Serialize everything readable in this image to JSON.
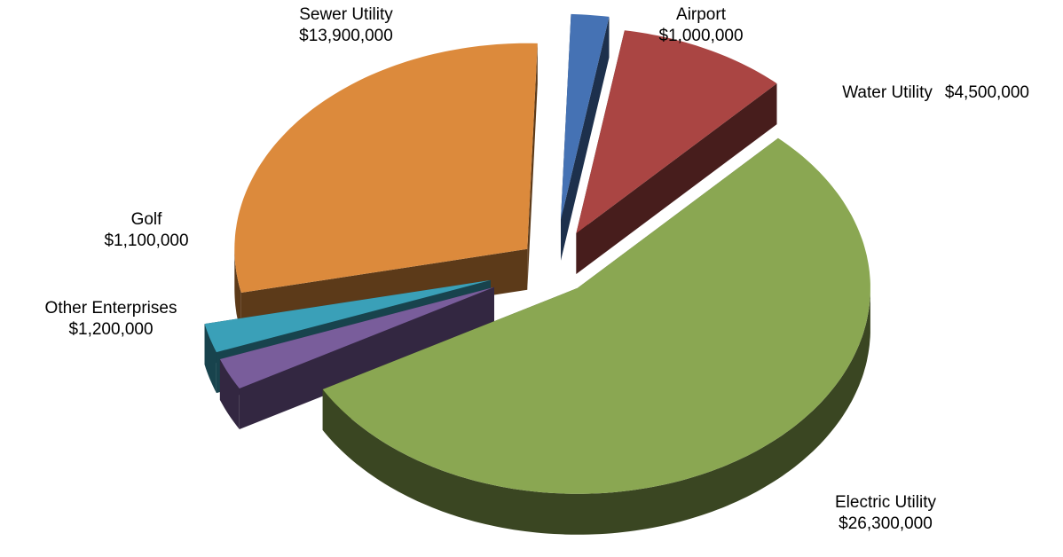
{
  "chart_data": {
    "type": "pie3d",
    "categories": [
      "Airport",
      "Water Utility",
      "Electric Utility",
      "Other Enterprises",
      "Golf",
      "Sewer Utility"
    ],
    "values": [
      1000000,
      4500000,
      26300000,
      1200000,
      1100000,
      13900000
    ],
    "value_labels": [
      "$1,000,000",
      "$4,500,000",
      "$26,300,000",
      "$1,200,000",
      "$1,100,000",
      "$13,900,000"
    ],
    "colors": [
      "#4572b4",
      "#aa4543",
      "#8aa752",
      "#795d9b",
      "#3aa0b8",
      "#dc8a3c"
    ]
  }
}
